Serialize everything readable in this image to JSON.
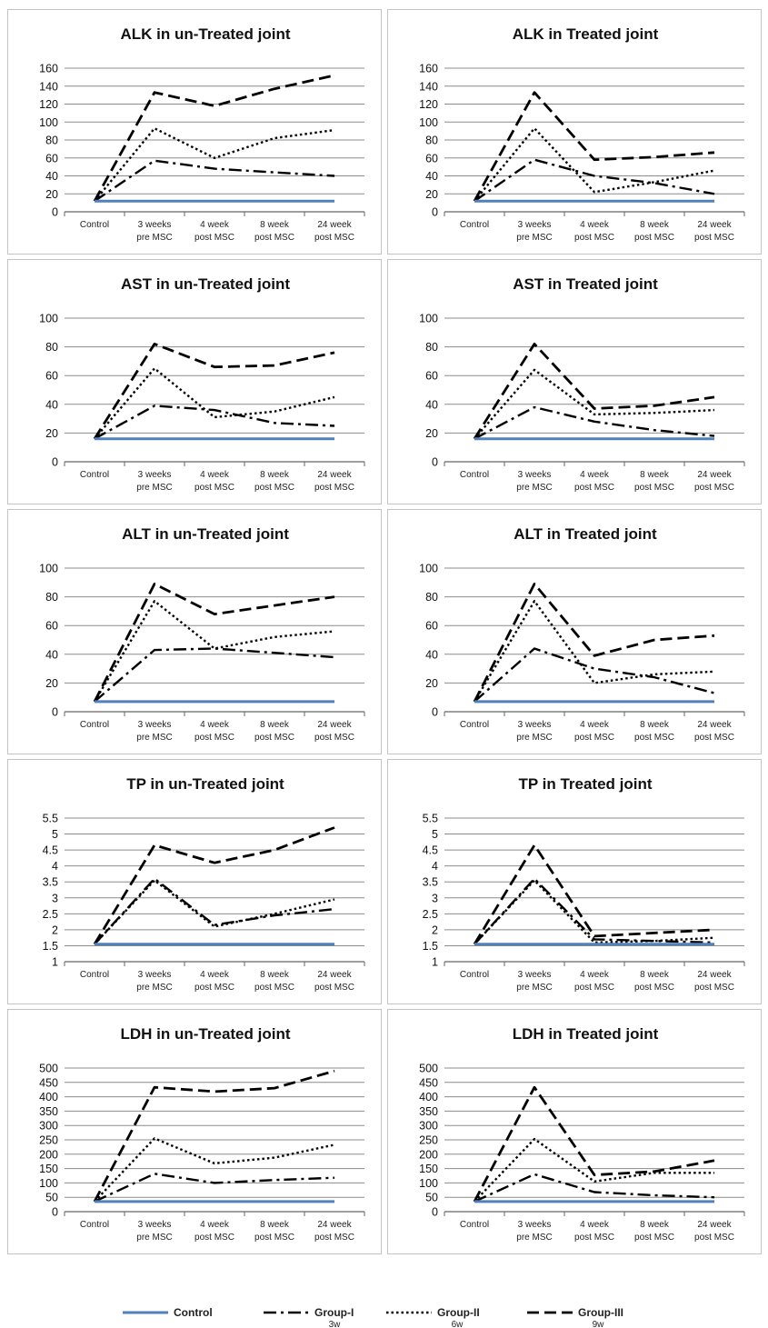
{
  "chart_data": [
    {
      "type": "line",
      "title": "ALK in un-Treated joint",
      "categories": [
        [
          "Control"
        ],
        [
          "3 weeks",
          "pre MSC"
        ],
        [
          "4 week",
          "post MSC"
        ],
        [
          "8 week",
          "post MSC"
        ],
        [
          "24 week",
          "post MSC"
        ]
      ],
      "yticks": [
        "0",
        "20",
        "40",
        "60",
        "80",
        "100",
        "120",
        "140",
        "160"
      ],
      "ylim": [
        0,
        160
      ],
      "grid": true,
      "series": [
        {
          "name": "Control",
          "values": [
            12,
            12,
            12,
            12,
            12
          ]
        },
        {
          "name": "Group-I",
          "values": [
            12,
            57,
            48,
            44,
            40
          ]
        },
        {
          "name": "Group-II",
          "values": [
            12,
            93,
            60,
            82,
            91
          ]
        },
        {
          "name": "Group-III",
          "values": [
            12,
            133,
            118,
            137,
            152
          ]
        }
      ]
    },
    {
      "type": "line",
      "title": "ALK in Treated joint",
      "categories": [
        [
          "Control"
        ],
        [
          "3 weeks",
          "pre MSC"
        ],
        [
          "4 week",
          "post MSC"
        ],
        [
          "8 week",
          "post MSC"
        ],
        [
          "24 week",
          "post MSC"
        ]
      ],
      "yticks": [
        "0",
        "20",
        "40",
        "60",
        "80",
        "100",
        "120",
        "140",
        "160"
      ],
      "ylim": [
        0,
        160
      ],
      "grid": true,
      "series": [
        {
          "name": "Control",
          "values": [
            12,
            12,
            12,
            12,
            12
          ]
        },
        {
          "name": "Group-I",
          "values": [
            12,
            58,
            40,
            32,
            20
          ]
        },
        {
          "name": "Group-II",
          "values": [
            12,
            93,
            22,
            33,
            46
          ]
        },
        {
          "name": "Group-III",
          "values": [
            12,
            133,
            58,
            61,
            66
          ]
        }
      ]
    },
    {
      "type": "line",
      "title": "AST in un-Treated joint",
      "categories": [
        [
          "Control"
        ],
        [
          "3 weeks",
          "pre MSC"
        ],
        [
          "4 week",
          "post MSC"
        ],
        [
          "8 week",
          "post MSC"
        ],
        [
          "24 week",
          "post MSC"
        ]
      ],
      "yticks": [
        "0",
        "20",
        "40",
        "60",
        "80",
        "100"
      ],
      "ylim": [
        0,
        100
      ],
      "grid": true,
      "series": [
        {
          "name": "Control",
          "values": [
            16,
            16,
            16,
            16,
            16
          ]
        },
        {
          "name": "Group-I",
          "values": [
            16,
            39,
            36,
            27,
            25
          ]
        },
        {
          "name": "Group-II",
          "values": [
            16,
            65,
            31,
            35,
            45
          ]
        },
        {
          "name": "Group-III",
          "values": [
            16,
            82,
            66,
            67,
            76
          ]
        }
      ]
    },
    {
      "type": "line",
      "title": "AST in Treated joint",
      "categories": [
        [
          "Control"
        ],
        [
          "3 weeks",
          "pre MSC"
        ],
        [
          "4 week",
          "post MSC"
        ],
        [
          "8 week",
          "post MSC"
        ],
        [
          "24 week",
          "post MSC"
        ]
      ],
      "yticks": [
        "0",
        "20",
        "40",
        "60",
        "80",
        "100"
      ],
      "ylim": [
        0,
        100
      ],
      "grid": true,
      "series": [
        {
          "name": "Control",
          "values": [
            16,
            16,
            16,
            16,
            16
          ]
        },
        {
          "name": "Group-I",
          "values": [
            16,
            38,
            28,
            22,
            18
          ]
        },
        {
          "name": "Group-II",
          "values": [
            16,
            64,
            33,
            34,
            36
          ]
        },
        {
          "name": "Group-III",
          "values": [
            16,
            82,
            37,
            39,
            45
          ]
        }
      ]
    },
    {
      "type": "line",
      "title": "ALT in un-Treated joint",
      "categories": [
        [
          "Control"
        ],
        [
          "3 weeks",
          "pre MSC"
        ],
        [
          "4 week",
          "post MSC"
        ],
        [
          "8 week",
          "post MSC"
        ],
        [
          "24 week",
          "post MSC"
        ]
      ],
      "yticks": [
        "0",
        "20",
        "40",
        "60",
        "80",
        "100"
      ],
      "ylim": [
        0,
        100
      ],
      "grid": true,
      "series": [
        {
          "name": "Control",
          "values": [
            7,
            7,
            7,
            7,
            7
          ]
        },
        {
          "name": "Group-I",
          "values": [
            7,
            43,
            44,
            41,
            38
          ]
        },
        {
          "name": "Group-II",
          "values": [
            7,
            77,
            44,
            52,
            56
          ]
        },
        {
          "name": "Group-III",
          "values": [
            7,
            89,
            68,
            74,
            80
          ]
        }
      ]
    },
    {
      "type": "line",
      "title": "ALT in Treated joint",
      "categories": [
        [
          "Control"
        ],
        [
          "3 weeks",
          "pre MSC"
        ],
        [
          "4 week",
          "post MSC"
        ],
        [
          "8 week",
          "post MSC"
        ],
        [
          "24 week",
          "post MSC"
        ]
      ],
      "yticks": [
        "0",
        "20",
        "40",
        "60",
        "80",
        "100"
      ],
      "ylim": [
        0,
        100
      ],
      "grid": true,
      "series": [
        {
          "name": "Control",
          "values": [
            7,
            7,
            7,
            7,
            7
          ]
        },
        {
          "name": "Group-I",
          "values": [
            7,
            44,
            30,
            24,
            13
          ]
        },
        {
          "name": "Group-II",
          "values": [
            7,
            77,
            20,
            26,
            28
          ]
        },
        {
          "name": "Group-III",
          "values": [
            7,
            89,
            39,
            50,
            53
          ]
        }
      ]
    },
    {
      "type": "line",
      "title": "TP in un-Treated joint",
      "categories": [
        [
          "Control"
        ],
        [
          "3 weeks",
          "pre MSC"
        ],
        [
          "4 week",
          "post MSC"
        ],
        [
          "8 week",
          "post MSC"
        ],
        [
          "24 week",
          "post MSC"
        ]
      ],
      "yticks": [
        "1",
        "1.5",
        "2",
        "2.5",
        "3",
        "3.5",
        "4",
        "4.5",
        "5",
        "5.5"
      ],
      "ylim": [
        1,
        5.5
      ],
      "grid": true,
      "series": [
        {
          "name": "Control",
          "values": [
            1.55,
            1.55,
            1.55,
            1.55,
            1.55
          ]
        },
        {
          "name": "Group-I",
          "values": [
            1.55,
            3.6,
            2.15,
            2.45,
            2.65
          ]
        },
        {
          "name": "Group-II",
          "values": [
            1.55,
            3.55,
            2.1,
            2.5,
            2.95
          ]
        },
        {
          "name": "Group-III",
          "values": [
            1.55,
            4.65,
            4.1,
            4.5,
            5.2
          ]
        }
      ]
    },
    {
      "type": "line",
      "title": "TP in Treated joint",
      "categories": [
        [
          "Control"
        ],
        [
          "3 weeks",
          "pre MSC"
        ],
        [
          "4 week",
          "post MSC"
        ],
        [
          "8 week",
          "post MSC"
        ],
        [
          "24 week",
          "post MSC"
        ]
      ],
      "yticks": [
        "1",
        "1.5",
        "2",
        "2.5",
        "3",
        "3.5",
        "4",
        "4.5",
        "5",
        "5.5"
      ],
      "ylim": [
        1,
        5.5
      ],
      "grid": true,
      "series": [
        {
          "name": "Control",
          "values": [
            1.55,
            1.55,
            1.55,
            1.55,
            1.55
          ]
        },
        {
          "name": "Group-I",
          "values": [
            1.55,
            3.6,
            1.7,
            1.65,
            1.6
          ]
        },
        {
          "name": "Group-II",
          "values": [
            1.55,
            3.55,
            1.6,
            1.65,
            1.75
          ]
        },
        {
          "name": "Group-III",
          "values": [
            1.55,
            4.65,
            1.8,
            1.9,
            2.0
          ]
        }
      ]
    },
    {
      "type": "line",
      "title": "LDH in un-Treated joint",
      "categories": [
        [
          "Control"
        ],
        [
          "3 weeks",
          "pre MSC"
        ],
        [
          "4 week",
          "post MSC"
        ],
        [
          "8 week",
          "post MSC"
        ],
        [
          "24 week",
          "post MSC"
        ]
      ],
      "yticks": [
        "0",
        "50",
        "100",
        "150",
        "200",
        "250",
        "300",
        "350",
        "400",
        "450",
        "500"
      ],
      "ylim": [
        0,
        500
      ],
      "grid": true,
      "series": [
        {
          "name": "Control",
          "values": [
            35,
            35,
            35,
            35,
            35
          ]
        },
        {
          "name": "Group-I",
          "values": [
            35,
            132,
            100,
            110,
            118
          ]
        },
        {
          "name": "Group-II",
          "values": [
            35,
            255,
            168,
            188,
            233
          ]
        },
        {
          "name": "Group-III",
          "values": [
            35,
            433,
            418,
            430,
            490
          ]
        }
      ]
    },
    {
      "type": "line",
      "title": "LDH in Treated joint",
      "categories": [
        [
          "Control"
        ],
        [
          "3 weeks",
          "pre MSC"
        ],
        [
          "4 week",
          "post MSC"
        ],
        [
          "8 week",
          "post MSC"
        ],
        [
          "24 week",
          "post MSC"
        ]
      ],
      "yticks": [
        "0",
        "50",
        "100",
        "150",
        "200",
        "250",
        "300",
        "350",
        "400",
        "450",
        "500"
      ],
      "ylim": [
        0,
        500
      ],
      "grid": true,
      "series": [
        {
          "name": "Control",
          "values": [
            35,
            35,
            35,
            35,
            35
          ]
        },
        {
          "name": "Group-I",
          "values": [
            35,
            130,
            68,
            57,
            50
          ]
        },
        {
          "name": "Group-II",
          "values": [
            35,
            253,
            105,
            135,
            135
          ]
        },
        {
          "name": "Group-III",
          "values": [
            35,
            433,
            128,
            140,
            178
          ]
        }
      ]
    }
  ],
  "legend": {
    "placement": "bottom",
    "items": [
      {
        "label": "Control",
        "sub": "",
        "style": "solid",
        "color": "#4f81bd"
      },
      {
        "label": "Group-I",
        "sub": "3w",
        "style": "dashdot",
        "color": "#000000"
      },
      {
        "label": "Group-II",
        "sub": "6w",
        "style": "dotted",
        "color": "#000000"
      },
      {
        "label": "Group-III",
        "sub": "9w",
        "style": "dashed",
        "color": "#000000"
      }
    ]
  },
  "colors": {
    "control_line": "#4f81bd",
    "group_lines": "#000000",
    "gridlines": "#8c8c8c",
    "panel_border": "#c4c4c4"
  }
}
